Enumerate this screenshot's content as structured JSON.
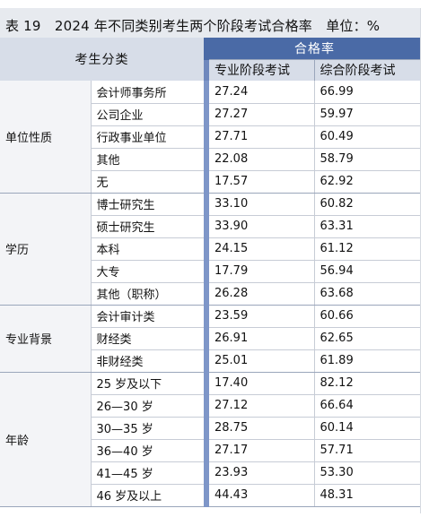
{
  "title": "表 19　2024 年不同类别考生两个阶段考试合格率　单位：%",
  "header": {
    "category_label": "考生分类",
    "group_label": "合格率",
    "col1_label": "专业阶段考试",
    "col2_label": "综合阶段考试"
  },
  "groups": [
    {
      "name": "单位性质",
      "rows": [
        {
          "label": "会计师事务所",
          "pro": "27.24",
          "comp": "66.99"
        },
        {
          "label": "公司企业",
          "pro": "27.27",
          "comp": "59.97"
        },
        {
          "label": "行政事业单位",
          "pro": "27.71",
          "comp": "60.49"
        },
        {
          "label": "其他",
          "pro": "22.08",
          "comp": "58.79"
        },
        {
          "label": "无",
          "pro": "17.57",
          "comp": "62.92"
        }
      ]
    },
    {
      "name": "学历",
      "rows": [
        {
          "label": "博士研究生",
          "pro": "33.10",
          "comp": "60.82"
        },
        {
          "label": "硕士研究生",
          "pro": "33.90",
          "comp": "63.31"
        },
        {
          "label": "本科",
          "pro": "24.15",
          "comp": "61.12"
        },
        {
          "label": "大专",
          "pro": "17.79",
          "comp": "56.94"
        },
        {
          "label": "其他（职称）",
          "pro": "26.28",
          "comp": "63.68"
        }
      ]
    },
    {
      "name": "专业背景",
      "rows": [
        {
          "label": "会计审计类",
          "pro": "23.59",
          "comp": "60.66"
        },
        {
          "label": "财经类",
          "pro": "26.91",
          "comp": "62.65"
        },
        {
          "label": "非财经类",
          "pro": "25.01",
          "comp": "61.89"
        }
      ]
    },
    {
      "name": "年龄",
      "rows": [
        {
          "label": "25 岁及以下",
          "pro": "17.40",
          "comp": "82.12"
        },
        {
          "label": "26—30 岁",
          "pro": "27.12",
          "comp": "66.64"
        },
        {
          "label": "30—35 岁",
          "pro": "28.75",
          "comp": "60.14"
        },
        {
          "label": "36—40 岁",
          "pro": "27.17",
          "comp": "57.71"
        },
        {
          "label": "41—45 岁",
          "pro": "23.93",
          "comp": "53.30"
        },
        {
          "label": "46 岁及以上",
          "pro": "44.43",
          "comp": "48.31"
        }
      ]
    }
  ]
}
